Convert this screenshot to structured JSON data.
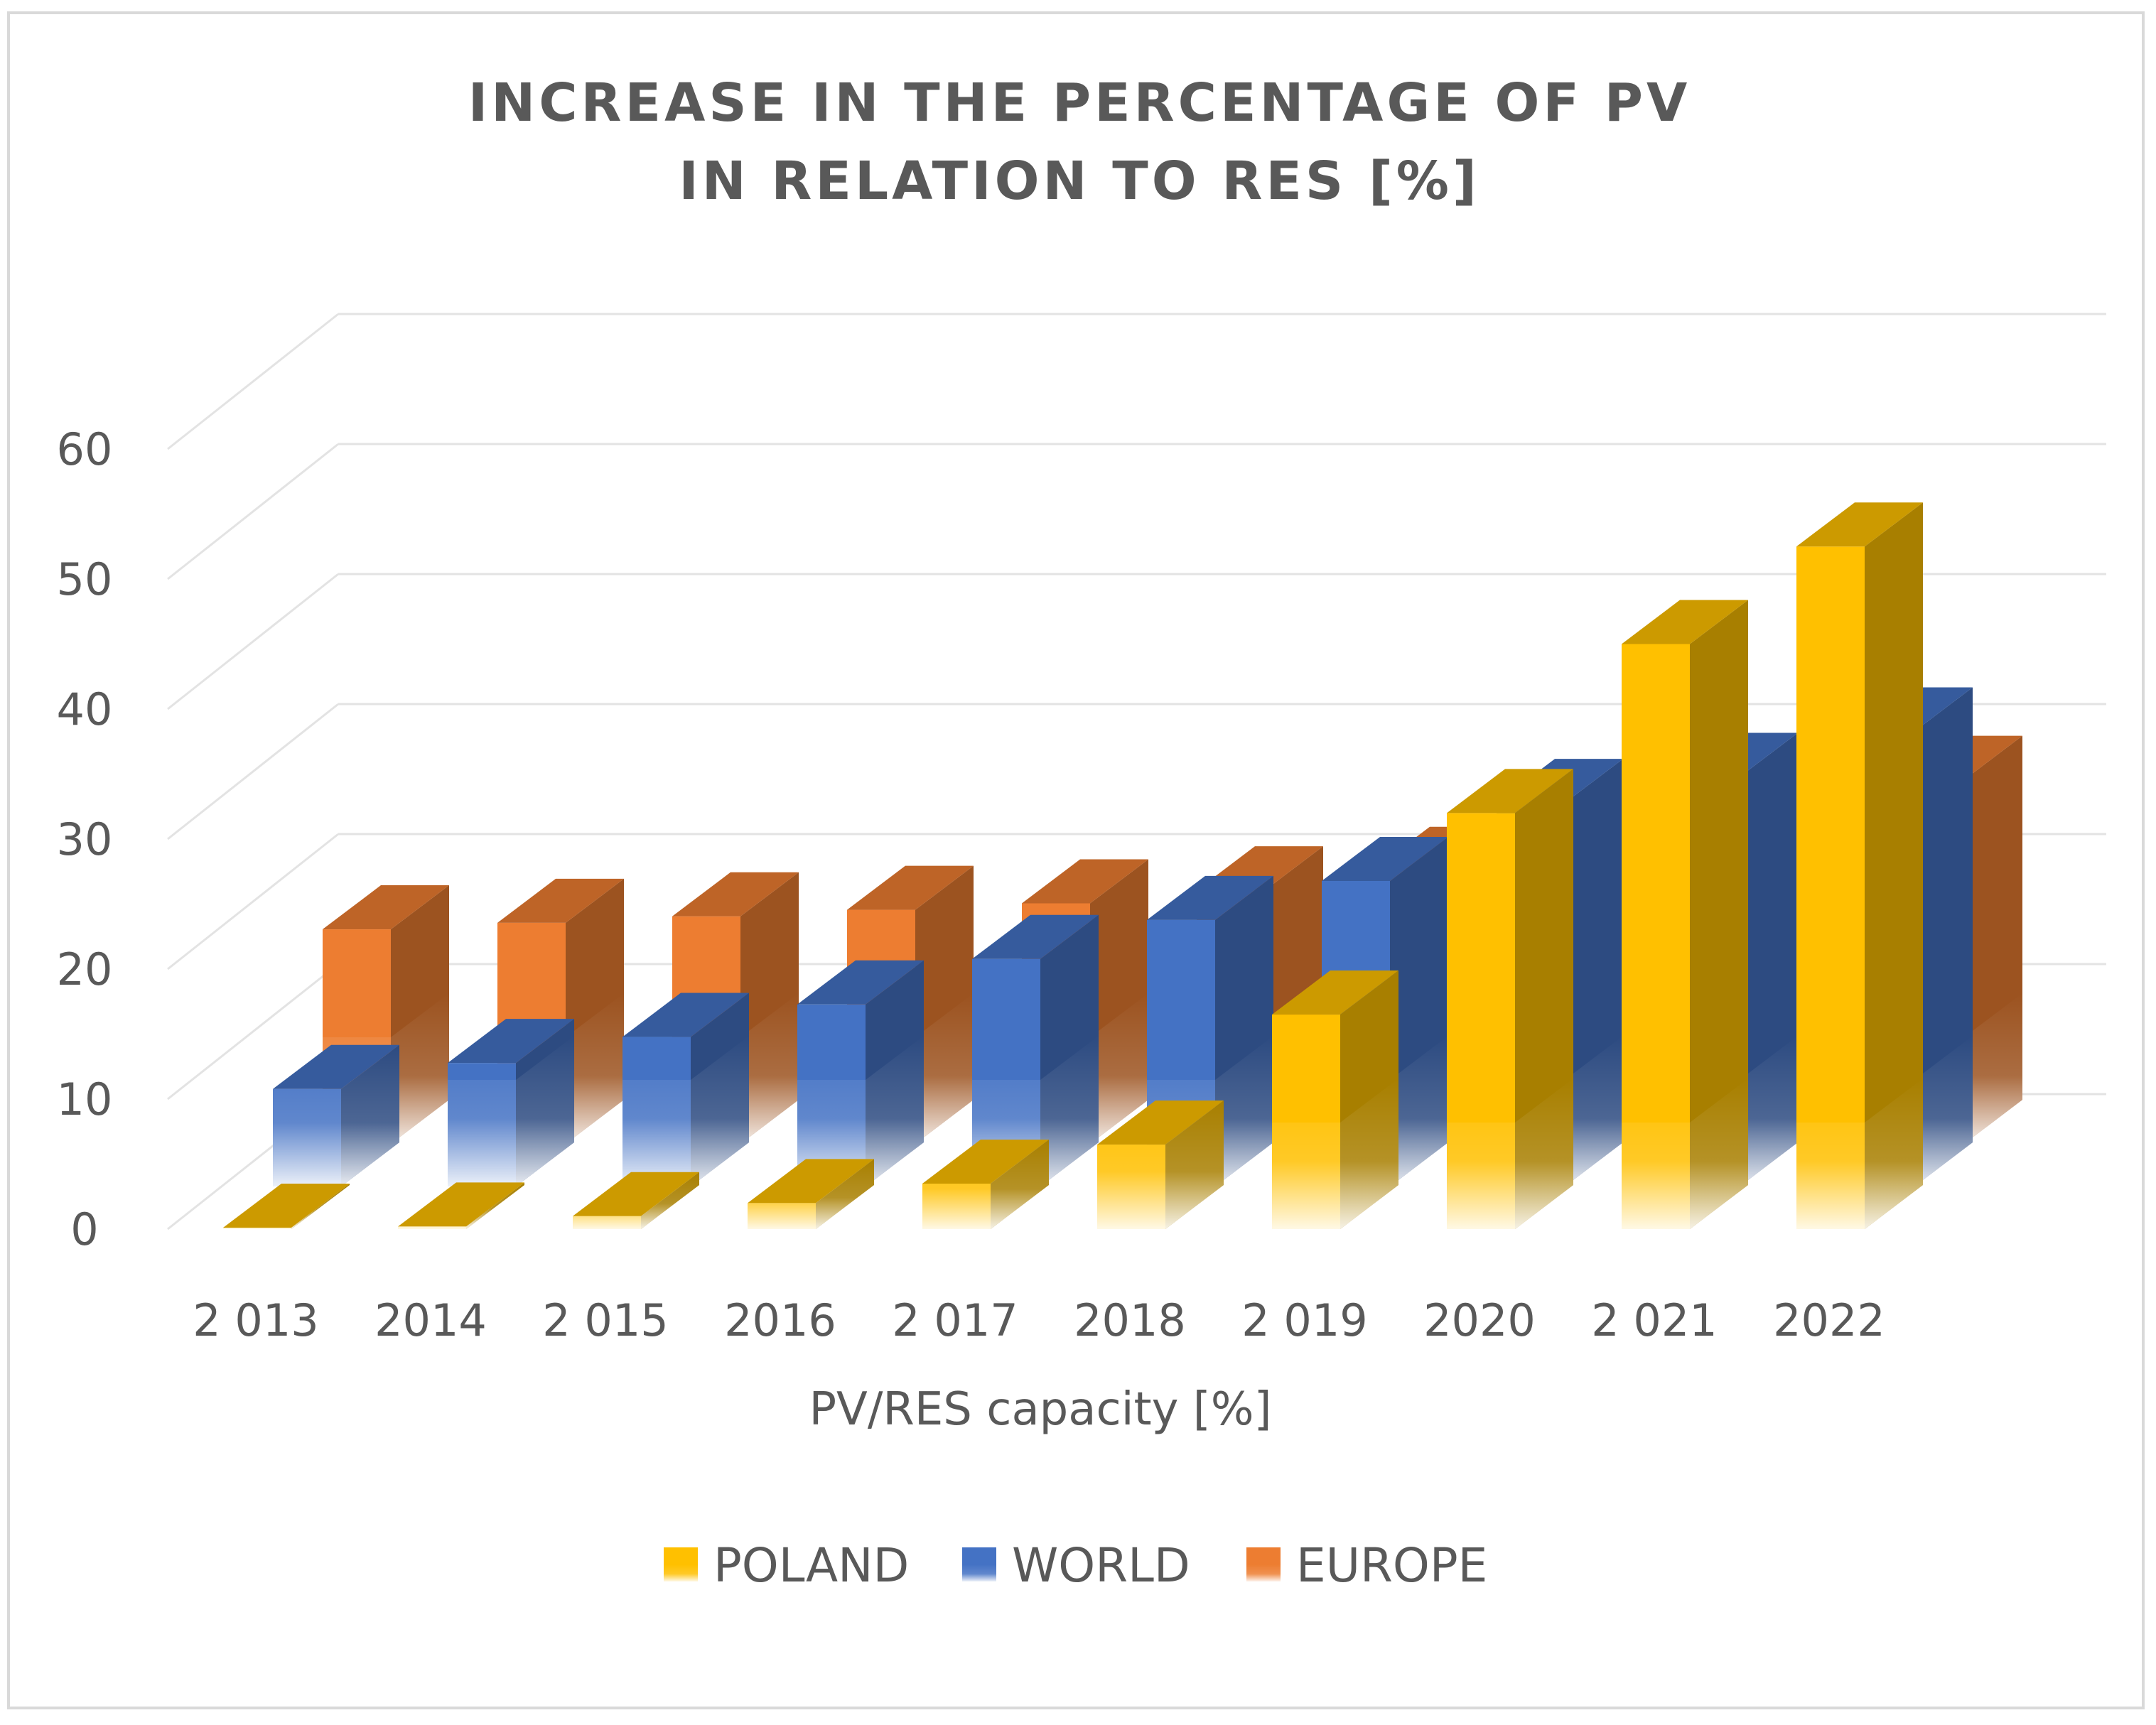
{
  "chart_data": {
    "type": "bar",
    "title": [
      "INCREASE IN THE PERCENTAGE OF PV",
      "IN RELATION TO RES  [%]"
    ],
    "xlabel": "PV/RES capacity [%]",
    "ylabel": "",
    "ylim": [
      0,
      60
    ],
    "yticks": [
      "0",
      "10",
      "20",
      "30",
      "40",
      "50",
      "60"
    ],
    "categories": [
      "2 013",
      "2014",
      "2 015",
      "2016",
      "2 017",
      "2018",
      "2 019",
      "2020",
      "2 021",
      "2022"
    ],
    "series": [
      {
        "name": "POLAND",
        "color": "#FFC000",
        "values": [
          0.1,
          0.2,
          1.0,
          2.0,
          3.5,
          6.5,
          16.5,
          32.0,
          45.0,
          52.5
        ]
      },
      {
        "name": "WORLD",
        "color": "#4472C4",
        "values": [
          7.5,
          9.5,
          11.5,
          14.0,
          17.5,
          20.5,
          23.5,
          29.5,
          31.5,
          35.0
        ]
      },
      {
        "name": "EUROPE",
        "color": "#ED7D31",
        "values": [
          16.5,
          17.0,
          17.5,
          18.0,
          18.5,
          19.5,
          21.0,
          23.5,
          25.5,
          28.0
        ]
      }
    ],
    "legend_position": "bottom",
    "grid": true
  }
}
